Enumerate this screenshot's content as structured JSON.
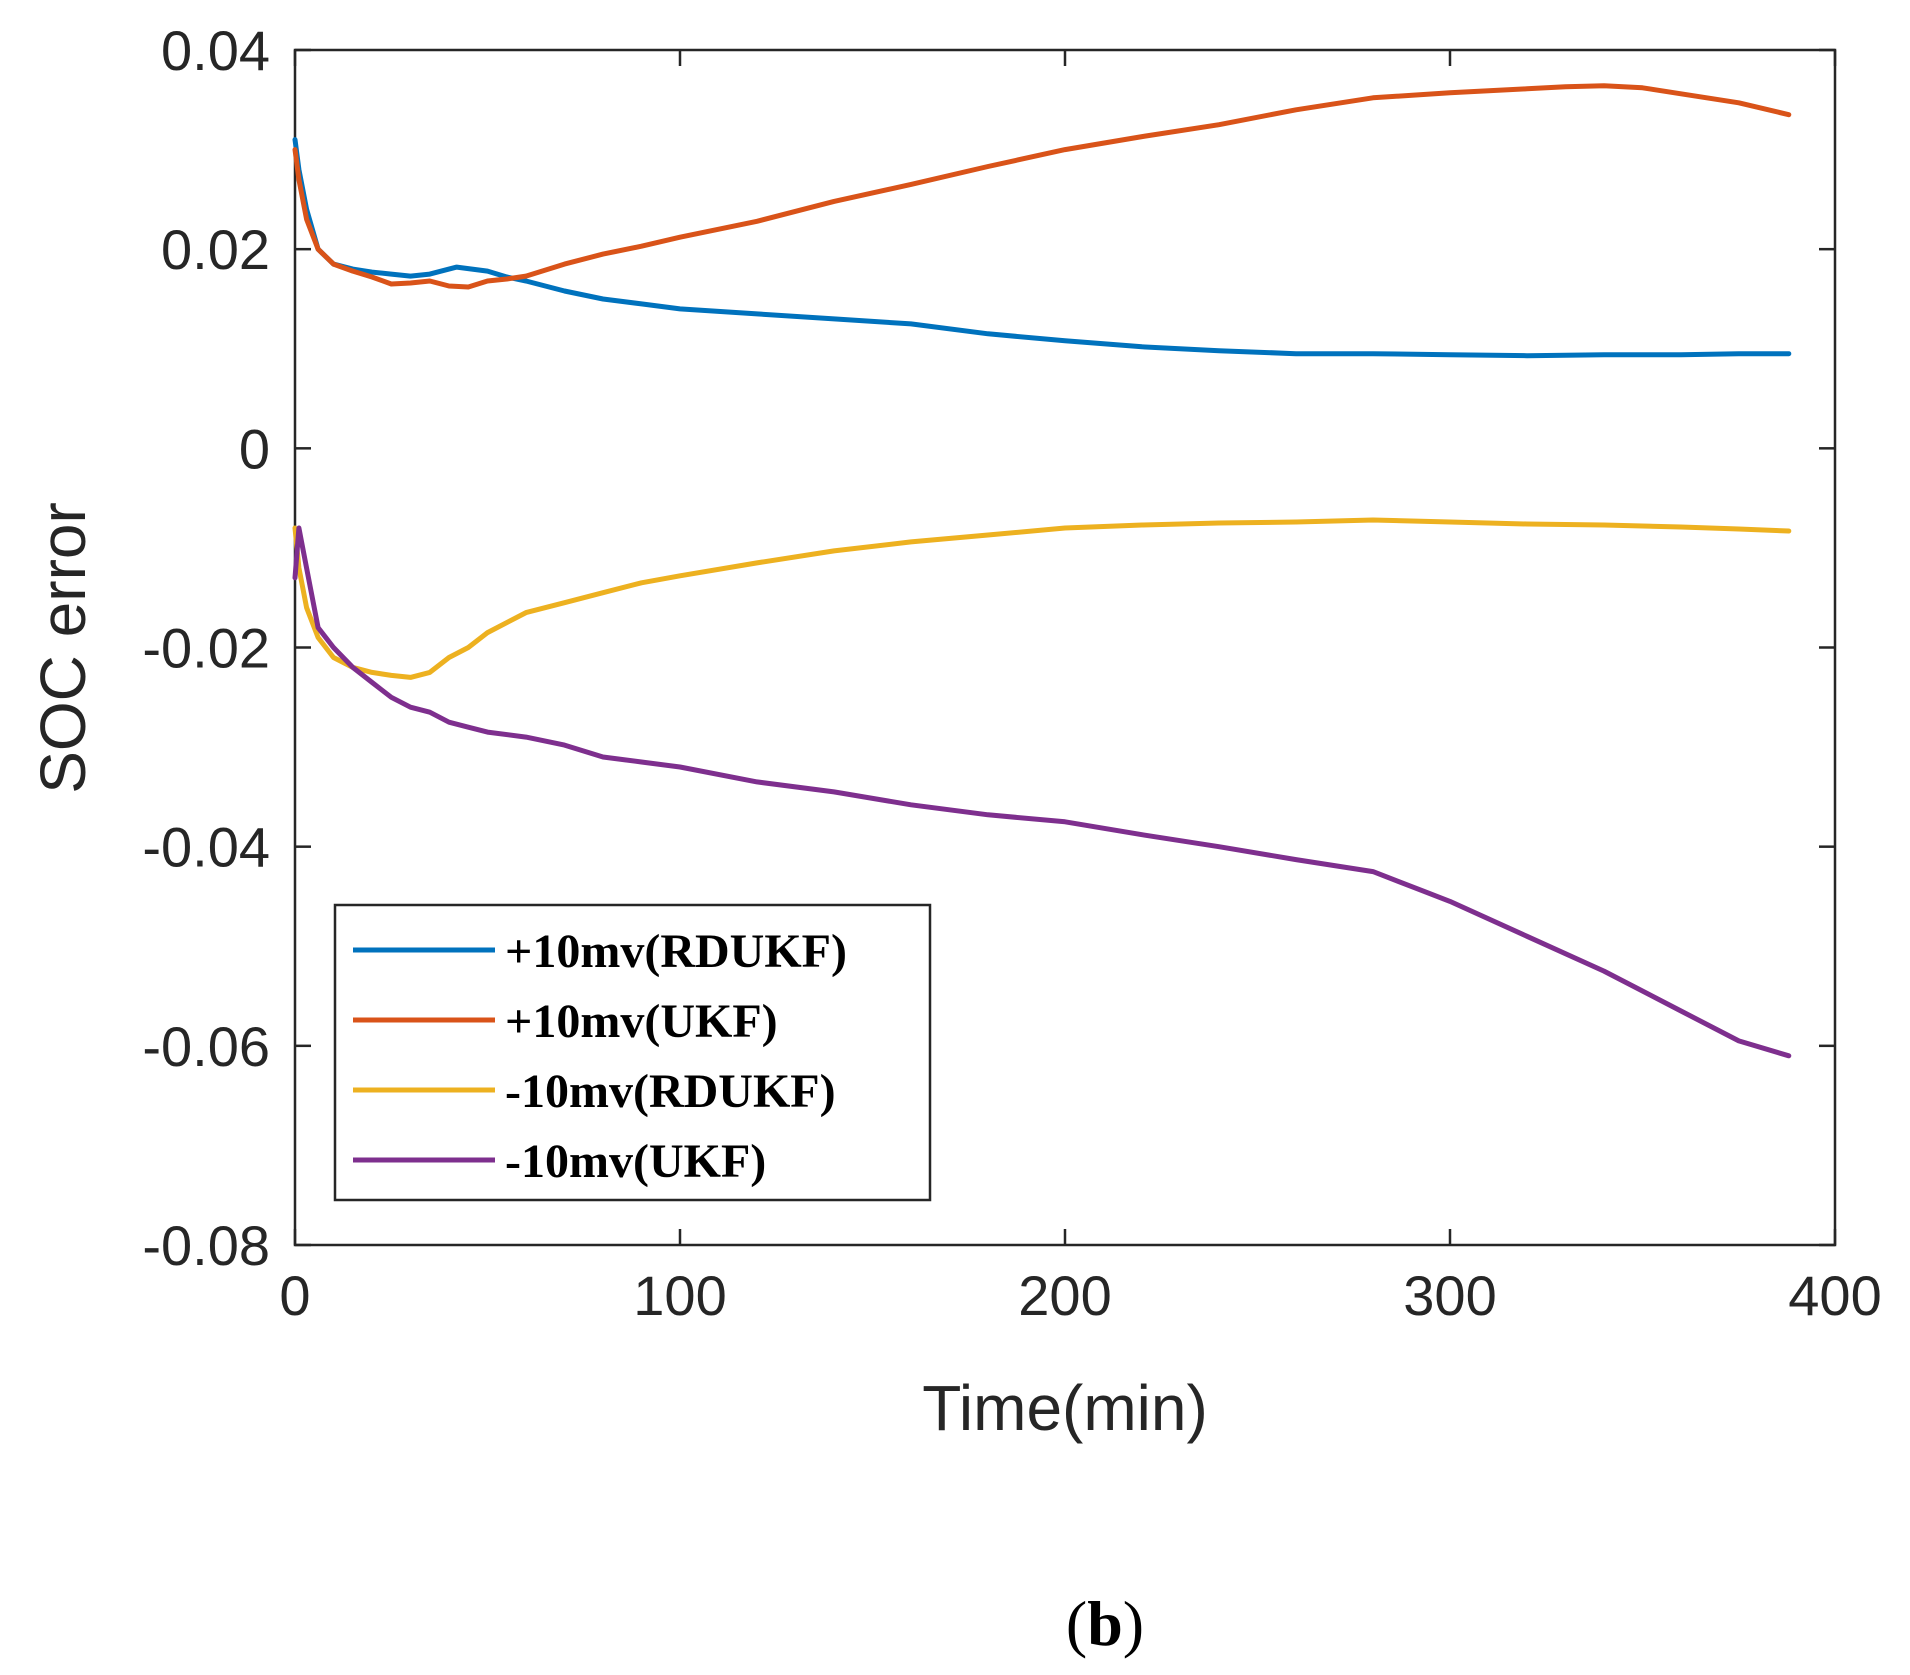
{
  "panel_label": {
    "open": "(",
    "letter": "b",
    "close": ")"
  },
  "chart_data": {
    "type": "line",
    "title": "",
    "xlabel": "Time(min)",
    "ylabel": "SOC error",
    "xlim": [
      0,
      400
    ],
    "ylim": [
      -0.08,
      0.04
    ],
    "xticks": [
      0,
      100,
      200,
      300,
      400
    ],
    "xtick_labels": [
      "0",
      "100",
      "200",
      "300",
      "400"
    ],
    "yticks": [
      -0.08,
      -0.06,
      -0.04,
      -0.02,
      0,
      0.02,
      0.04
    ],
    "ytick_labels": [
      "-0.08",
      "-0.06",
      "-0.04",
      "-0.02",
      "0",
      "0.02",
      "0.04"
    ],
    "grid": false,
    "legend_position": "bottom-left",
    "series": [
      {
        "name": "+10mv(RDUKF)",
        "color": "#0072BD",
        "x": [
          0,
          1,
          3,
          6,
          10,
          15,
          20,
          25,
          30,
          35,
          38,
          42,
          46,
          50,
          55,
          60,
          70,
          80,
          90,
          100,
          120,
          140,
          160,
          180,
          200,
          220,
          240,
          260,
          280,
          300,
          320,
          340,
          360,
          375,
          388
        ],
        "y": [
          0.031,
          0.028,
          0.024,
          0.02,
          0.0185,
          0.018,
          0.0177,
          0.0175,
          0.0173,
          0.0175,
          0.0178,
          0.0182,
          0.018,
          0.0178,
          0.0172,
          0.0168,
          0.0158,
          0.015,
          0.0145,
          0.014,
          0.0135,
          0.013,
          0.0125,
          0.0115,
          0.0108,
          0.0102,
          0.0098,
          0.0095,
          0.0095,
          0.0094,
          0.0093,
          0.0094,
          0.0094,
          0.0095,
          0.0095
        ]
      },
      {
        "name": "+10mv(UKF)",
        "color": "#D95319",
        "x": [
          0,
          1,
          3,
          6,
          10,
          15,
          20,
          25,
          30,
          35,
          40,
          45,
          50,
          55,
          60,
          70,
          80,
          90,
          100,
          120,
          140,
          160,
          180,
          200,
          220,
          240,
          260,
          280,
          300,
          320,
          330,
          340,
          350,
          360,
          375,
          388
        ],
        "y": [
          0.03,
          0.027,
          0.023,
          0.02,
          0.0185,
          0.0178,
          0.0172,
          0.0165,
          0.0166,
          0.0168,
          0.0163,
          0.0162,
          0.0168,
          0.017,
          0.0173,
          0.0185,
          0.0195,
          0.0203,
          0.0212,
          0.0228,
          0.0248,
          0.0265,
          0.0283,
          0.03,
          0.0313,
          0.0325,
          0.034,
          0.0352,
          0.0357,
          0.0361,
          0.0363,
          0.0364,
          0.0362,
          0.0356,
          0.0347,
          0.0335
        ]
      },
      {
        "name": "-10mv(RDUKF)",
        "color": "#EDB120",
        "x": [
          0,
          1,
          3,
          6,
          10,
          15,
          20,
          25,
          30,
          35,
          40,
          45,
          50,
          60,
          70,
          80,
          90,
          100,
          120,
          140,
          160,
          180,
          200,
          220,
          240,
          260,
          280,
          300,
          320,
          340,
          360,
          375,
          388
        ],
        "y": [
          -0.008,
          -0.012,
          -0.016,
          -0.019,
          -0.021,
          -0.022,
          -0.0225,
          -0.0228,
          -0.023,
          -0.0225,
          -0.021,
          -0.02,
          -0.0185,
          -0.0165,
          -0.0155,
          -0.0145,
          -0.0135,
          -0.0128,
          -0.0115,
          -0.0103,
          -0.0094,
          -0.0087,
          -0.008,
          -0.0077,
          -0.0075,
          -0.0074,
          -0.0072,
          -0.0074,
          -0.0076,
          -0.0077,
          -0.0079,
          -0.0081,
          -0.0083
        ]
      },
      {
        "name": "-10mv(UKF)",
        "color": "#7E2F8E",
        "x": [
          0,
          1,
          2,
          4,
          6,
          10,
          15,
          20,
          25,
          30,
          35,
          40,
          45,
          50,
          60,
          70,
          80,
          90,
          100,
          120,
          140,
          160,
          180,
          200,
          220,
          240,
          260,
          280,
          300,
          320,
          340,
          360,
          375,
          388
        ],
        "y": [
          -0.013,
          -0.008,
          -0.01,
          -0.014,
          -0.018,
          -0.02,
          -0.022,
          -0.0235,
          -0.025,
          -0.026,
          -0.0265,
          -0.0275,
          -0.028,
          -0.0285,
          -0.029,
          -0.0298,
          -0.031,
          -0.0315,
          -0.032,
          -0.0335,
          -0.0345,
          -0.0358,
          -0.0368,
          -0.0375,
          -0.0388,
          -0.04,
          -0.0413,
          -0.0425,
          -0.0455,
          -0.049,
          -0.0525,
          -0.0565,
          -0.0595,
          -0.061
        ]
      }
    ]
  }
}
